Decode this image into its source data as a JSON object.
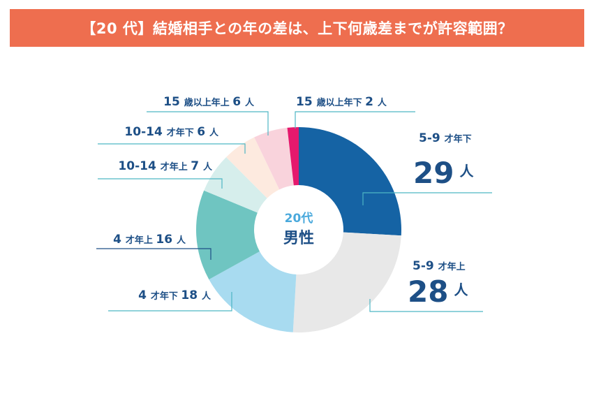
{
  "title": "【20 代】結婚相手との年の差は、上下何歳差までが許容範囲？",
  "colors": {
    "title_bg": "#ee6e4f",
    "label": "#1d4f86",
    "leader": "#4db6c4"
  },
  "chart_data": {
    "type": "donut",
    "title": "【20 代】結婚相手との年の差は、上下何歳差までが許容範囲？",
    "center_label": {
      "line1": "20代",
      "line2": "男性"
    },
    "unit": "人",
    "slices": [
      {
        "category": "5-9 才年下",
        "value": 29,
        "color": "#1563a4",
        "label_num": "5-9",
        "label_text": "才年下",
        "value_text": "29",
        "unit": "人",
        "style": "big"
      },
      {
        "category": "5-9 才年上",
        "value": 28,
        "color": "#e8e8e8",
        "label_num": "5-9",
        "label_text": "才年上",
        "value_text": "28",
        "unit": "人",
        "style": "big"
      },
      {
        "category": "4 才年下",
        "value": 18,
        "color": "#a8dbf0",
        "label_num": "4",
        "label_text": "才年下",
        "value_text": "18",
        "unit": "人",
        "style": "small"
      },
      {
        "category": "4 才年上",
        "value": 16,
        "color": "#6fc5c1",
        "label_num": "4",
        "label_text": "才年上",
        "value_text": "16",
        "unit": "人",
        "style": "small"
      },
      {
        "category": "10-14 才年上",
        "value": 7,
        "color": "#d6eeec",
        "label_num": "10-14",
        "label_text": "才年上",
        "value_text": "7",
        "unit": "人",
        "style": "small"
      },
      {
        "category": "10-14 才年下",
        "value": 6,
        "color": "#fdeadf",
        "label_num": "10-14",
        "label_text": "才年下",
        "value_text": "6",
        "unit": "人",
        "style": "small"
      },
      {
        "category": "15 歳以上年上",
        "value": 6,
        "color": "#f9d3dc",
        "label_num": "15",
        "label_text": "歳以上年上",
        "value_text": "6",
        "unit": "人",
        "style": "small"
      },
      {
        "category": "15 歳以上年下",
        "value": 2,
        "color": "#e5196d",
        "label_num": "15",
        "label_text": "歳以上年下",
        "value_text": "2",
        "unit": "人",
        "style": "small"
      }
    ]
  }
}
